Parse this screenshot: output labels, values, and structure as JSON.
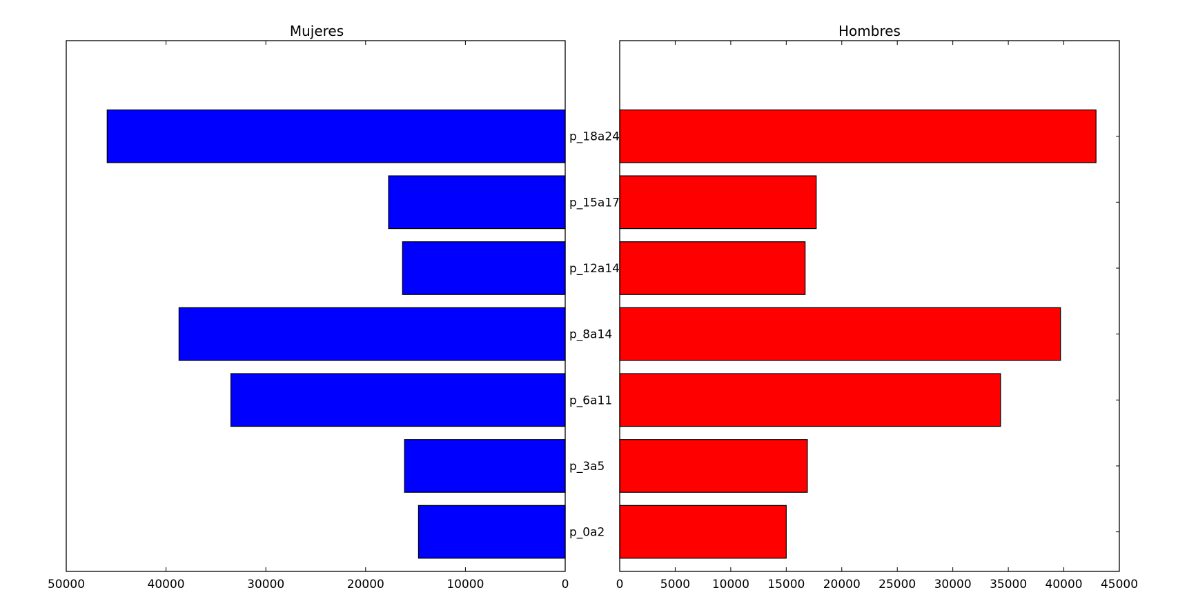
{
  "chart_data": [
    {
      "type": "bar",
      "orientation": "horizontal",
      "title": "Mujeres",
      "categories": [
        "p_0a2",
        "p_3a5",
        "p_6a11",
        "p_8a14",
        "p_12a14",
        "p_15a17",
        "p_18a24"
      ],
      "values": [
        14700,
        16100,
        33500,
        38700,
        16300,
        17700,
        45900
      ],
      "xlim": [
        50000,
        0
      ],
      "xticks": [
        50000,
        40000,
        30000,
        20000,
        10000,
        0
      ],
      "xticklabels": [
        "50000",
        "40000",
        "30000",
        "20000",
        "10000",
        "0"
      ],
      "bar_color": "#0000ff",
      "grid": false
    },
    {
      "type": "bar",
      "orientation": "horizontal",
      "title": "Hombres",
      "categories": [
        "p_0a2",
        "p_3a5",
        "p_6a11",
        "p_8a14",
        "p_12a14",
        "p_15a17",
        "p_18a24"
      ],
      "values": [
        15000,
        16900,
        34300,
        39700,
        16700,
        17700,
        42900
      ],
      "xlim": [
        0,
        45000
      ],
      "xticks": [
        0,
        5000,
        10000,
        15000,
        20000,
        25000,
        30000,
        35000,
        40000,
        45000
      ],
      "xticklabels": [
        "0",
        "5000",
        "10000",
        "15000",
        "20000",
        "25000",
        "30000",
        "35000",
        "40000",
        "45000"
      ],
      "bar_color": "#ff0000",
      "grid": false
    }
  ]
}
